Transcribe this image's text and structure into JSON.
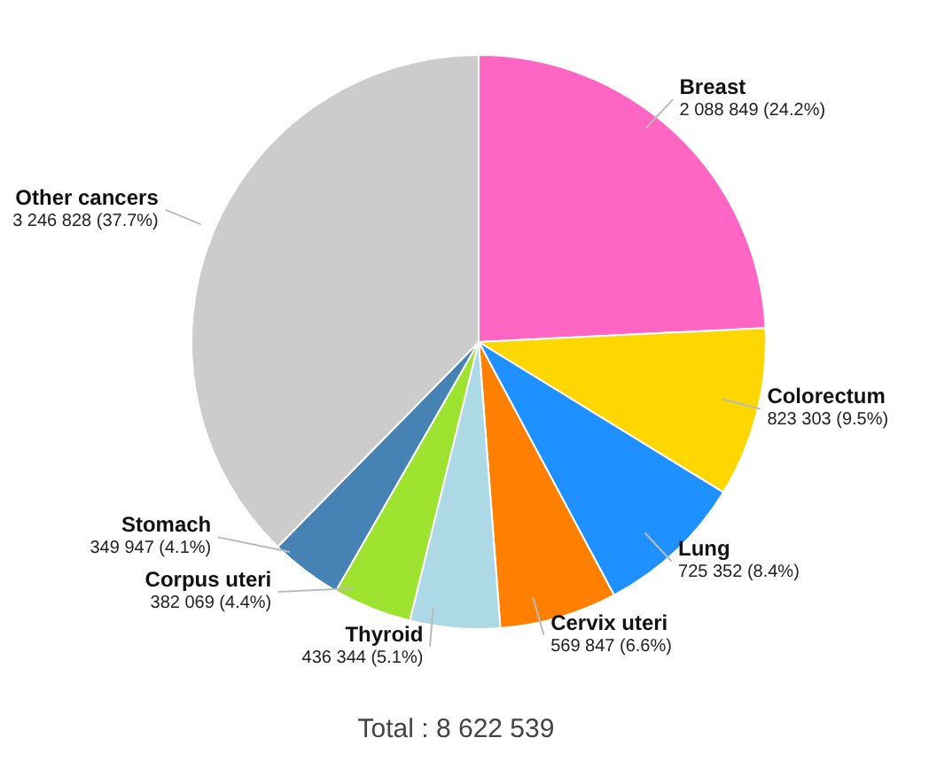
{
  "chart_data": {
    "type": "pie",
    "categories": [
      "Breast",
      "Colorectum",
      "Lung",
      "Cervix uteri",
      "Thyroid",
      "Corpus uteri",
      "Stomach",
      "Other cancers"
    ],
    "values": [
      2088849,
      823303,
      725352,
      569847,
      436344,
      382069,
      349947,
      3246828
    ],
    "colors": [
      "#ff66c4",
      "#ffd700",
      "#1e90ff",
      "#ff7f00",
      "#add8e6",
      "#9de32f",
      "#4682b4",
      "#cccccc"
    ],
    "value_labels": [
      "2 088 849 (24.2%)",
      "823 303 (9.5%)",
      "725 352 (8.4%)",
      "569 847 (6.6%)",
      "436 344 (5.1%)",
      "382 069 (4.4%)",
      "349 947 (4.1%)",
      "3 246 828 (37.7%)"
    ],
    "annotations": [
      "Total : 8 622 539"
    ]
  }
}
